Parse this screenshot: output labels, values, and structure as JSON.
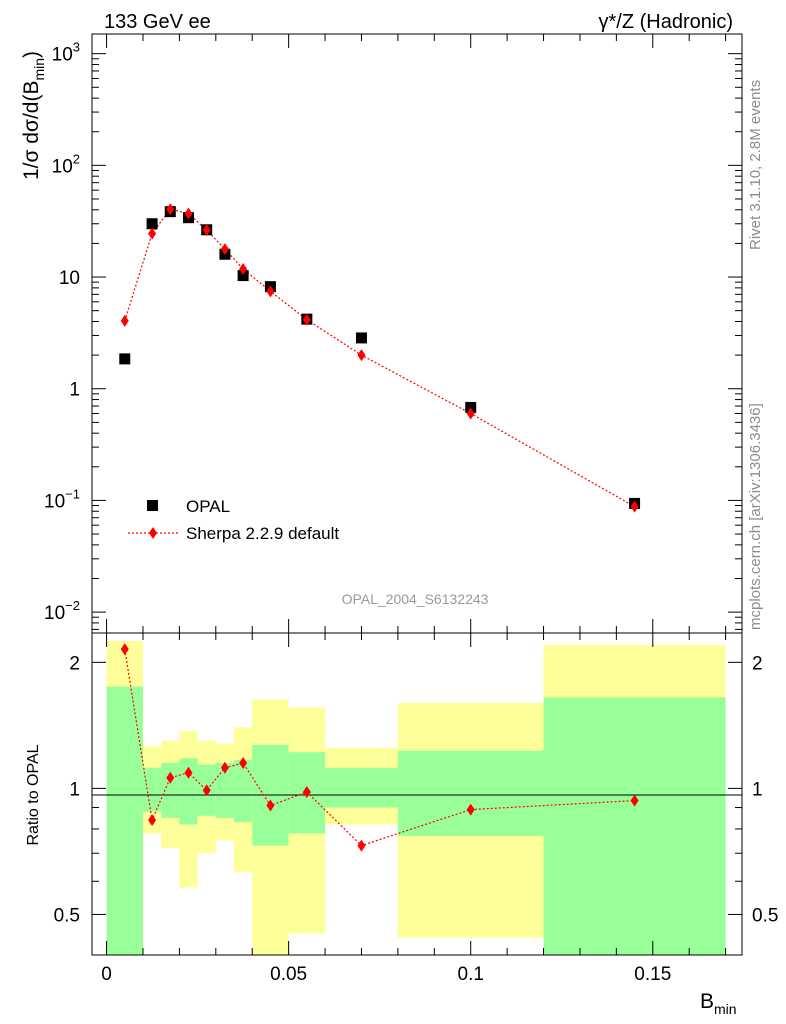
{
  "header": {
    "left": "133 GeV ee",
    "right_main": "γ*/Z (Hadronic)"
  },
  "side": {
    "rivet": "Rivet 3.1.10,  2.8M events",
    "mcplots": "mcplots.cern.ch [arXiv:1306.3436]"
  },
  "watermark": "OPAL_2004_S6132243",
  "colors": {
    "data": "#000000",
    "mc": "#ff0000",
    "band_inner": "#99ff99",
    "band_outer": "#ffff99",
    "side_text": "#8c8c8c"
  },
  "chart_data": [
    {
      "type": "scatter",
      "panel": "main",
      "ylabel": "1/σ dσ/d(B_min)",
      "ylabel_main": "1/σ dσ/d(B",
      "ylabel_sub": "min",
      "ylabel_close": ")",
      "yscale": "log",
      "ylim": [
        0.0065,
        1500
      ],
      "xlim": [
        -0.004,
        0.1745
      ],
      "y_ticks": [
        {
          "v": 0.01,
          "base": "10",
          "exp": "−2"
        },
        {
          "v": 0.1,
          "base": "10",
          "exp": "−1"
        },
        {
          "v": 1,
          "base": "1",
          "exp": ""
        },
        {
          "v": 10,
          "base": "10",
          "exp": ""
        },
        {
          "v": 100,
          "base": "10",
          "exp": "2"
        },
        {
          "v": 1000,
          "base": "10",
          "exp": "3"
        }
      ],
      "legend": [
        {
          "name": "OPAL",
          "marker": "square"
        },
        {
          "name": "Sherpa 2.2.9 default",
          "marker": "diamond"
        }
      ],
      "series": [
        {
          "name": "OPAL",
          "x": [
            0.005,
            0.0125,
            0.0175,
            0.0225,
            0.0275,
            0.0325,
            0.0375,
            0.045,
            0.055,
            0.07,
            0.1,
            0.145
          ],
          "y": [
            1.85,
            30,
            38.5,
            34,
            26.5,
            16,
            10.3,
            8.2,
            4.2,
            2.85,
            0.68,
            0.094
          ]
        },
        {
          "name": "Sherpa 2.2.9 default",
          "x": [
            0.005,
            0.0125,
            0.0175,
            0.0225,
            0.0275,
            0.0325,
            0.0375,
            0.045,
            0.055,
            0.07,
            0.1,
            0.145
          ],
          "y": [
            4.05,
            24.5,
            40.5,
            37,
            26.3,
            17.8,
            11.8,
            7.45,
            4.15,
            2.0,
            0.6,
            0.088
          ]
        }
      ]
    },
    {
      "type": "line",
      "panel": "ratio",
      "ylabel": "Ratio to OPAL",
      "xlabel": "B_min",
      "xlabel_main": "B",
      "xlabel_sub": "min",
      "yscale": "log",
      "ylim": [
        0.4,
        2.35
      ],
      "xlim": [
        -0.004,
        0.1745
      ],
      "y_ticks": [
        {
          "v": 0.5,
          "label": "0.5"
        },
        {
          "v": 1,
          "label": "1"
        },
        {
          "v": 2,
          "label": "2"
        }
      ],
      "x_ticks": [
        {
          "v": 0,
          "label": "0"
        },
        {
          "v": 0.05,
          "label": "0.05"
        },
        {
          "v": 0.1,
          "label": "0.1"
        },
        {
          "v": 0.15,
          "label": "0.15"
        }
      ],
      "bins": [
        {
          "x0": 0.0,
          "x1": 0.01,
          "in_lo": 0.1,
          "in_hi": 1.75,
          "out_lo": 0.1,
          "out_hi": 2.25
        },
        {
          "x0": 0.01,
          "x1": 0.015,
          "in_lo": 0.88,
          "in_hi": 1.12,
          "out_lo": 0.78,
          "out_hi": 1.26
        },
        {
          "x0": 0.015,
          "x1": 0.02,
          "in_lo": 0.85,
          "in_hi": 1.15,
          "out_lo": 0.72,
          "out_hi": 1.3
        },
        {
          "x0": 0.02,
          "x1": 0.025,
          "in_lo": 0.82,
          "in_hi": 1.18,
          "out_lo": 0.58,
          "out_hi": 1.37
        },
        {
          "x0": 0.025,
          "x1": 0.03,
          "in_lo": 0.86,
          "in_hi": 1.14,
          "out_lo": 0.7,
          "out_hi": 1.3
        },
        {
          "x0": 0.03,
          "x1": 0.035,
          "in_lo": 0.85,
          "in_hi": 1.15,
          "out_lo": 0.75,
          "out_hi": 1.28
        },
        {
          "x0": 0.035,
          "x1": 0.04,
          "in_lo": 0.83,
          "in_hi": 1.17,
          "out_lo": 0.63,
          "out_hi": 1.4
        },
        {
          "x0": 0.04,
          "x1": 0.05,
          "in_lo": 0.73,
          "in_hi": 1.27,
          "out_lo": 0.38,
          "out_hi": 1.63
        },
        {
          "x0": 0.05,
          "x1": 0.06,
          "in_lo": 0.78,
          "in_hi": 1.22,
          "out_lo": 0.45,
          "out_hi": 1.56
        },
        {
          "x0": 0.06,
          "x1": 0.08,
          "in_lo": 0.9,
          "in_hi": 1.12,
          "out_lo": 0.82,
          "out_hi": 1.25
        },
        {
          "x0": 0.08,
          "x1": 0.12,
          "in_lo": 0.77,
          "in_hi": 1.23,
          "out_lo": 0.44,
          "out_hi": 1.6
        },
        {
          "x0": 0.12,
          "x1": 0.17,
          "in_lo": 0.37,
          "in_hi": 1.65,
          "out_lo": 0.1,
          "out_hi": 2.2
        }
      ],
      "series": [
        {
          "name": "Sherpa 2.2.9 default / OPAL",
          "x": [
            0.005,
            0.0125,
            0.0175,
            0.0225,
            0.0275,
            0.0325,
            0.0375,
            0.045,
            0.055,
            0.07,
            0.1,
            0.145
          ],
          "y": [
            2.15,
            0.84,
            1.06,
            1.09,
            0.99,
            1.12,
            1.15,
            0.91,
            0.98,
            0.73,
            0.89,
            0.935
          ]
        }
      ]
    }
  ]
}
